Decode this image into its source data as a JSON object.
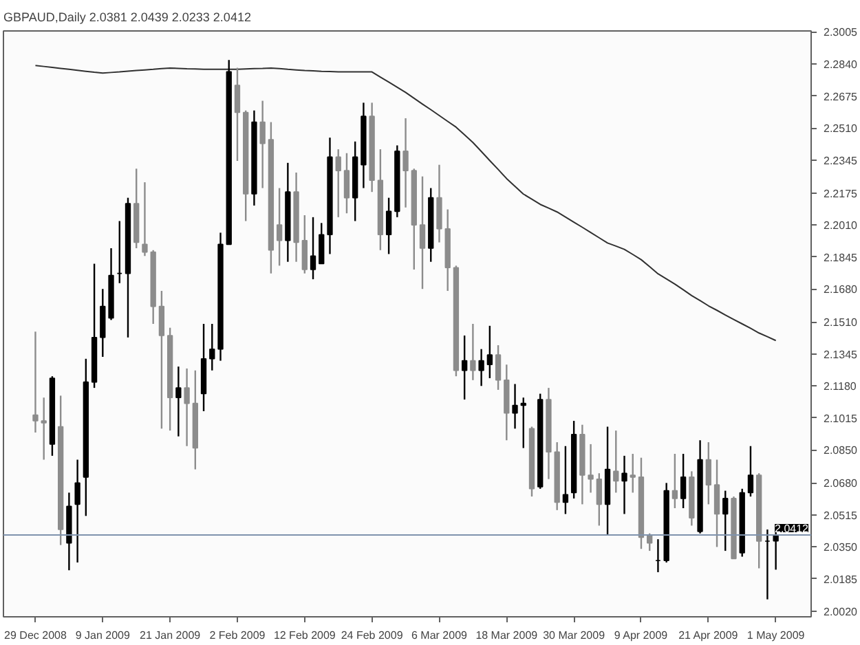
{
  "chart_data": {
    "type": "candlestick",
    "title": "GBPAUD,Daily  2.0381 2.0439 2.0233 2.0412",
    "categories": [
      "29 Dec 2008",
      null,
      null,
      null,
      null,
      null,
      null,
      null,
      "9 Jan 2009",
      null,
      null,
      null,
      null,
      null,
      null,
      null,
      "21 Jan 2009",
      null,
      null,
      null,
      null,
      null,
      null,
      null,
      "2 Feb 2009",
      null,
      null,
      null,
      null,
      null,
      null,
      null,
      "12 Feb 2009",
      null,
      null,
      null,
      null,
      null,
      null,
      null,
      "24 Feb 2009",
      null,
      null,
      null,
      null,
      null,
      null,
      null,
      "6 Mar 2009",
      null,
      null,
      null,
      null,
      null,
      null,
      null,
      "18 Mar 2009",
      null,
      null,
      null,
      null,
      null,
      null,
      null,
      "30 Mar 2009",
      null,
      null,
      null,
      null,
      null,
      null,
      null,
      "9 Apr 2009",
      null,
      null,
      null,
      null,
      null,
      null,
      null,
      "21 Apr 2009",
      null,
      null,
      null,
      null,
      null,
      null,
      null,
      "1 May 2009"
    ],
    "ohlc": [
      [
        2.103,
        2.146,
        2.094,
        2.1
      ],
      [
        2.1,
        2.112,
        2.08,
        2.099
      ],
      [
        2.088,
        2.123,
        2.082,
        2.122
      ],
      [
        2.097,
        2.113,
        2.036,
        2.044
      ],
      [
        2.037,
        2.063,
        2.023,
        2.056
      ],
      [
        2.057,
        2.08,
        2.027,
        2.068
      ],
      [
        2.071,
        2.132,
        2.051,
        2.12
      ],
      [
        2.12,
        2.181,
        2.117,
        2.143
      ],
      [
        2.143,
        2.168,
        2.133,
        2.159
      ],
      [
        2.153,
        2.189,
        2.152,
        2.175
      ],
      [
        2.176,
        2.203,
        2.171,
        2.176
      ],
      [
        2.176,
        2.215,
        2.143,
        2.212
      ],
      [
        2.212,
        2.23,
        2.189,
        2.192
      ],
      [
        2.191,
        2.223,
        2.185,
        2.187
      ],
      [
        2.187,
        2.188,
        2.15,
        2.159
      ],
      [
        2.159,
        2.167,
        2.096,
        2.144
      ],
      [
        2.144,
        2.148,
        2.095,
        2.112
      ],
      [
        2.112,
        2.128,
        2.092,
        2.117
      ],
      [
        2.117,
        2.127,
        2.087,
        2.109
      ],
      [
        2.109,
        2.126,
        2.075,
        2.086
      ],
      [
        2.114,
        2.15,
        2.105,
        2.132
      ],
      [
        2.132,
        2.15,
        2.126,
        2.137
      ],
      [
        2.137,
        2.197,
        2.131,
        2.191
      ],
      [
        2.191,
        2.286,
        2.191,
        2.28
      ],
      [
        2.273,
        2.282,
        2.234,
        2.259
      ],
      [
        2.259,
        2.26,
        2.203,
        2.217
      ],
      [
        2.217,
        2.26,
        2.211,
        2.254
      ],
      [
        2.254,
        2.265,
        2.22,
        2.243
      ],
      [
        2.245,
        2.254,
        2.176,
        2.188
      ],
      [
        2.201,
        2.22,
        2.18,
        2.193
      ],
      [
        2.193,
        2.233,
        2.182,
        2.218
      ],
      [
        2.218,
        2.228,
        2.182,
        2.192
      ],
      [
        2.193,
        2.206,
        2.176,
        2.178
      ],
      [
        2.178,
        2.205,
        2.173,
        2.185
      ],
      [
        2.181,
        2.202,
        2.181,
        2.196
      ],
      [
        2.196,
        2.246,
        2.186,
        2.236
      ],
      [
        2.236,
        2.24,
        2.205,
        2.229
      ],
      [
        2.229,
        2.238,
        2.207,
        2.215
      ],
      [
        2.215,
        2.244,
        2.203,
        2.236
      ],
      [
        2.232,
        2.264,
        2.22,
        2.257
      ],
      [
        2.257,
        2.264,
        2.218,
        2.224
      ],
      [
        2.224,
        2.24,
        2.188,
        2.196
      ],
      [
        2.196,
        2.215,
        2.186,
        2.208
      ],
      [
        2.208,
        2.242,
        2.205,
        2.239
      ],
      [
        2.239,
        2.256,
        2.21,
        2.229
      ],
      [
        2.229,
        2.23,
        2.178,
        2.201
      ],
      [
        2.201,
        2.226,
        2.168,
        2.189
      ],
      [
        2.189,
        2.22,
        2.182,
        2.215
      ],
      [
        2.215,
        2.232,
        2.192,
        2.199
      ],
      [
        2.199,
        2.209,
        2.167,
        2.179
      ],
      [
        2.179,
        2.18,
        2.123,
        2.126
      ],
      [
        2.126,
        2.144,
        2.111,
        2.131
      ],
      [
        2.131,
        2.15,
        2.121,
        2.126
      ],
      [
        2.126,
        2.137,
        2.118,
        2.131
      ],
      [
        2.129,
        2.149,
        2.122,
        2.134
      ],
      [
        2.134,
        2.139,
        2.116,
        2.121
      ],
      [
        2.121,
        2.129,
        2.09,
        2.104
      ],
      [
        2.104,
        2.119,
        2.096,
        2.108
      ],
      [
        2.108,
        2.112,
        2.086,
        2.109
      ],
      [
        2.096,
        2.097,
        2.061,
        2.065
      ],
      [
        2.066,
        2.114,
        2.065,
        2.111
      ],
      [
        2.111,
        2.117,
        2.07,
        2.084
      ],
      [
        2.084,
        2.089,
        2.054,
        2.058
      ],
      [
        2.058,
        2.087,
        2.052,
        2.062
      ],
      [
        2.063,
        2.1,
        2.06,
        2.093
      ],
      [
        2.093,
        2.098,
        2.057,
        2.072
      ],
      [
        2.072,
        2.088,
        2.063,
        2.07
      ],
      [
        2.07,
        2.073,
        2.046,
        2.057
      ],
      [
        2.057,
        2.097,
        2.041,
        2.075
      ],
      [
        2.074,
        2.095,
        2.063,
        2.069
      ],
      [
        2.069,
        2.082,
        2.052,
        2.073
      ],
      [
        2.072,
        2.083,
        2.063,
        2.071
      ],
      [
        2.071,
        2.081,
        2.034,
        2.04
      ],
      [
        2.041,
        2.042,
        2.033,
        2.037
      ],
      [
        2.028,
        2.039,
        2.022,
        2.028
      ],
      [
        2.028,
        2.068,
        2.027,
        2.064
      ],
      [
        2.064,
        2.083,
        2.055,
        2.06
      ],
      [
        2.06,
        2.083,
        2.055,
        2.071
      ],
      [
        2.071,
        2.074,
        2.046,
        2.05
      ],
      [
        2.043,
        2.09,
        2.042,
        2.08
      ],
      [
        2.08,
        2.089,
        2.057,
        2.067
      ],
      [
        2.067,
        2.08,
        2.035,
        2.052
      ],
      [
        2.052,
        2.064,
        2.033,
        2.06
      ],
      [
        2.06,
        2.061,
        2.029,
        2.029
      ],
      [
        2.032,
        2.065,
        2.03,
        2.063
      ],
      [
        2.063,
        2.087,
        2.061,
        2.072
      ],
      [
        2.072,
        2.073,
        2.024,
        2.038
      ],
      [
        2.038,
        2.044,
        2.008,
        2.038
      ],
      [
        2.0381,
        2.0439,
        2.0233,
        2.0412
      ]
    ],
    "colors": [
      "#8c8c8c",
      "#8c8c8c",
      "#000000",
      "#8c8c8c",
      "#000000",
      "#000000",
      "#000000",
      "#000000",
      "#000000",
      "#000000",
      "#000000",
      "#000000",
      "#8c8c8c",
      "#8c8c8c",
      "#8c8c8c",
      "#8c8c8c",
      "#8c8c8c",
      "#000000",
      "#8c8c8c",
      "#8c8c8c",
      "#000000",
      "#000000",
      "#000000",
      "#000000",
      "#8c8c8c",
      "#8c8c8c",
      "#000000",
      "#8c8c8c",
      "#8c8c8c",
      "#8c8c8c",
      "#000000",
      "#8c8c8c",
      "#8c8c8c",
      "#000000",
      "#000000",
      "#000000",
      "#8c8c8c",
      "#8c8c8c",
      "#000000",
      "#000000",
      "#8c8c8c",
      "#8c8c8c",
      "#000000",
      "#000000",
      "#8c8c8c",
      "#8c8c8c",
      "#8c8c8c",
      "#000000",
      "#8c8c8c",
      "#8c8c8c",
      "#8c8c8c",
      "#000000",
      "#8c8c8c",
      "#000000",
      "#000000",
      "#8c8c8c",
      "#8c8c8c",
      "#000000",
      "#000000",
      "#8c8c8c",
      "#000000",
      "#8c8c8c",
      "#8c8c8c",
      "#000000",
      "#000000",
      "#8c8c8c",
      "#8c8c8c",
      "#8c8c8c",
      "#000000",
      "#8c8c8c",
      "#000000",
      "#8c8c8c",
      "#8c8c8c",
      "#8c8c8c",
      "#000000",
      "#000000",
      "#8c8c8c",
      "#000000",
      "#8c8c8c",
      "#000000",
      "#8c8c8c",
      "#8c8c8c",
      "#000000",
      "#8c8c8c",
      "#000000",
      "#000000",
      "#8c8c8c",
      "#000000",
      "#000000"
    ],
    "series": [
      {
        "type": "line",
        "color": "#303030",
        "values": [
          2.2832,
          2.2827,
          2.2822,
          2.2817,
          2.2812,
          2.2807,
          2.2802,
          2.2797,
          2.2793,
          2.2796,
          2.2799,
          2.2803,
          2.2806,
          2.2809,
          2.2812,
          2.2816,
          2.2819,
          2.2817,
          2.2815,
          2.2814,
          2.2812,
          2.2812,
          2.2812,
          2.2812,
          2.2812,
          2.2814,
          2.2816,
          2.2817,
          2.2819,
          2.2816,
          2.2812,
          2.2809,
          2.2806,
          2.2804,
          2.2802,
          2.2801,
          2.2799,
          2.2799,
          2.2799,
          2.2799,
          2.2799,
          2.2772,
          2.2746,
          2.272,
          2.2693,
          2.2663,
          2.2633,
          2.2604,
          2.2574,
          2.2544,
          2.2514,
          2.2475,
          2.2435,
          2.2389,
          2.2342,
          2.2296,
          2.2249,
          2.2209,
          2.2169,
          2.2143,
          2.2116,
          2.2097,
          2.2077,
          2.2051,
          2.2024,
          2.1998,
          2.1971,
          2.1944,
          2.1917,
          2.1901,
          2.1884,
          2.1858,
          2.1831,
          2.1795,
          2.1758,
          2.1732,
          2.1705,
          2.1676,
          2.1646,
          2.162,
          2.1593,
          2.157,
          2.1546,
          2.1523,
          2.15,
          2.1477,
          2.1453,
          2.1434,
          2.1414
        ]
      }
    ],
    "ylim": [
      1.999,
      2.301
    ],
    "yticks": [
      {
        "value": 2.3005,
        "label": "2.3005"
      },
      {
        "value": 2.284,
        "label": "2.2840"
      },
      {
        "value": 2.2675,
        "label": "2.2675"
      },
      {
        "value": 2.251,
        "label": "2.2510"
      },
      {
        "value": 2.2345,
        "label": "2.2345"
      },
      {
        "value": 2.2175,
        "label": "2.2175"
      },
      {
        "value": 2.201,
        "label": "2.2010"
      },
      {
        "value": 2.1845,
        "label": "2.1845"
      },
      {
        "value": 2.168,
        "label": "2.1680"
      },
      {
        "value": 2.151,
        "label": "2.1510"
      },
      {
        "value": 2.1345,
        "label": "2.1345"
      },
      {
        "value": 2.118,
        "label": "2.1180"
      },
      {
        "value": 2.1015,
        "label": "2.1015"
      },
      {
        "value": 2.085,
        "label": "2.0850"
      },
      {
        "value": 2.068,
        "label": "2.0680"
      },
      {
        "value": 2.0515,
        "label": "2.0515"
      },
      {
        "value": 2.035,
        "label": "2.0350"
      },
      {
        "value": 2.0185,
        "label": "2.0185"
      },
      {
        "value": 2.002,
        "label": "2.0020"
      }
    ],
    "ref_lines": [
      {
        "axis": "y",
        "value": 2.0412,
        "label": "2.0412",
        "color": "#7f93ad"
      }
    ],
    "grid": false
  }
}
